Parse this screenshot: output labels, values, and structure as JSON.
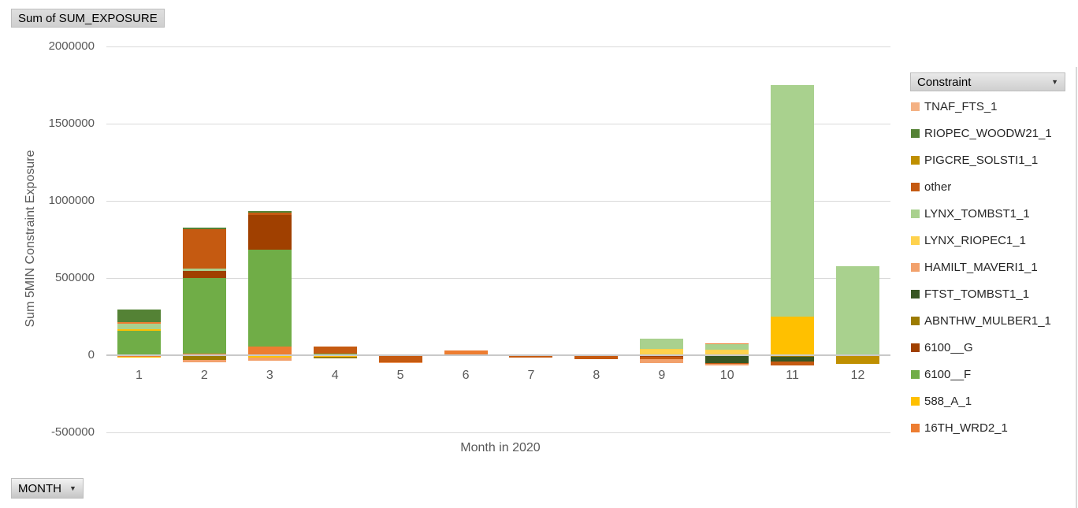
{
  "field_buttons": {
    "value_button": "Sum of SUM_EXPOSURE",
    "legend_button": "Constraint",
    "axis_button": "MONTH",
    "dropdown_arrow": "▼"
  },
  "colors": {
    "gridline": "#D9D9D9",
    "zero_axis_line": "#C9C9C9",
    "tick_text": "#595959",
    "axis_title_text": "#595959",
    "legend_text": "#262626"
  },
  "chart_data": {
    "type": "bar",
    "stacked": true,
    "title": "Sum of SUM_EXPOSURE",
    "xlabel": "Month in 2020",
    "ylabel": "Sum 5MIN Constraint Exposure",
    "ylim": [
      -500000,
      2000000
    ],
    "yticks": [
      2000000,
      1500000,
      1000000,
      500000,
      0,
      -500000
    ],
    "grid": true,
    "legend_position": "right",
    "legend_title": "Constraint",
    "categories": [
      "1",
      "2",
      "3",
      "4",
      "5",
      "6",
      "7",
      "8",
      "9",
      "10",
      "11",
      "12"
    ],
    "series_colors": {
      "TNAF_FTS_1": "#F4B183",
      "RIOPEC_WOODW21_1": "#548235",
      "PIGCRE_SOLSTI1_1": "#BF8F00",
      "other": "#C55A11",
      "LYNX_TOMBST1_1": "#A9D18E",
      "LYNX_RIOPEC1_1": "#FFD24D",
      "HAMILT_MAVERI1_1": "#F2A16C",
      "FTST_TOMBST1_1": "#375623",
      "ABNTHW_MULBER1_1": "#9C7B00",
      "6100__G": "#A04000",
      "6100__F": "#70AD47",
      "588_A_1": "#FFC000",
      "16TH_WRD2_1": "#ED7D31"
    },
    "legend_order": [
      "TNAF_FTS_1",
      "RIOPEC_WOODW21_1",
      "PIGCRE_SOLSTI1_1",
      "other",
      "LYNX_TOMBST1_1",
      "LYNX_RIOPEC1_1",
      "HAMILT_MAVERI1_1",
      "FTST_TOMBST1_1",
      "ABNTHW_MULBER1_1",
      "6100__G",
      "6100__F",
      "588_A_1",
      "16TH_WRD2_1"
    ],
    "bars": [
      {
        "category": "1",
        "positive": [
          {
            "series": "6100__F",
            "value": 158000
          },
          {
            "series": "588_A_1",
            "value": 9000
          },
          {
            "series": "LYNX_TOMBST1_1",
            "value": 36000
          },
          {
            "series": "16TH_WRD2_1",
            "value": 9000
          },
          {
            "series": "RIOPEC_WOODW21_1",
            "value": 82000
          }
        ],
        "negative": [
          {
            "series": "16TH_WRD2_1",
            "value": -8000
          },
          {
            "series": "588_A_1",
            "value": -4000
          }
        ]
      },
      {
        "category": "2",
        "positive": [
          {
            "series": "16TH_WRD2_1",
            "value": 10000
          },
          {
            "series": "6100__F",
            "value": 488000
          },
          {
            "series": "6100__G",
            "value": 50000
          },
          {
            "series": "LYNX_TOMBST1_1",
            "value": 12000
          },
          {
            "series": "other",
            "value": 255000
          },
          {
            "series": "RIOPEC_WOODW21_1",
            "value": 11000
          }
        ],
        "negative": [
          {
            "series": "ABNTHW_MULBER1_1",
            "value": -30000
          },
          {
            "series": "HAMILT_MAVERI1_1",
            "value": -17000
          }
        ]
      },
      {
        "category": "3",
        "positive": [
          {
            "series": "16TH_WRD2_1",
            "value": 56000
          },
          {
            "series": "6100__F",
            "value": 629000
          },
          {
            "series": "6100__G",
            "value": 221000
          },
          {
            "series": "other",
            "value": 18000
          },
          {
            "series": "RIOPEC_WOODW21_1",
            "value": 10000
          }
        ],
        "negative": [
          {
            "series": "588_A_1",
            "value": -17000
          },
          {
            "series": "HAMILT_MAVERI1_1",
            "value": -21000
          }
        ]
      },
      {
        "category": "4",
        "positive": [
          {
            "series": "6100__F",
            "value": 10000
          },
          {
            "series": "other",
            "value": 46000
          }
        ],
        "negative": [
          {
            "series": "588_A_1",
            "value": -10000
          },
          {
            "series": "ABNTHW_MULBER1_1",
            "value": -9000
          }
        ]
      },
      {
        "category": "5",
        "positive": [],
        "negative": [
          {
            "series": "other",
            "value": -45000
          },
          {
            "series": "HAMILT_MAVERI1_1",
            "value": -7000
          }
        ]
      },
      {
        "category": "6",
        "positive": [
          {
            "series": "16TH_WRD2_1",
            "value": 31000
          }
        ],
        "negative": [
          {
            "series": "FTST_TOMBST1_1",
            "value": -4000
          }
        ]
      },
      {
        "category": "7",
        "positive": [],
        "negative": [
          {
            "series": "other",
            "value": -13000
          }
        ]
      },
      {
        "category": "8",
        "positive": [],
        "negative": [
          {
            "series": "other",
            "value": -27000
          }
        ]
      },
      {
        "category": "9",
        "positive": [
          {
            "series": "LYNX_RIOPEC1_1",
            "value": 41000
          },
          {
            "series": "LYNX_TOMBST1_1",
            "value": 66000
          }
        ],
        "negative": [
          {
            "series": "6100__G",
            "value": -10000
          },
          {
            "series": "other",
            "value": -15000
          },
          {
            "series": "HAMILT_MAVERI1_1",
            "value": -28000
          }
        ]
      },
      {
        "category": "10",
        "positive": [
          {
            "series": "LYNX_RIOPEC1_1",
            "value": 36000
          },
          {
            "series": "LYNX_TOMBST1_1",
            "value": 35000
          },
          {
            "series": "16TH_WRD2_1",
            "value": 6000
          }
        ],
        "negative": [
          {
            "series": "FTST_TOMBST1_1",
            "value": -50000
          },
          {
            "series": "other",
            "value": -8000
          },
          {
            "series": "HAMILT_MAVERI1_1",
            "value": -10000
          }
        ]
      },
      {
        "category": "11",
        "positive": [
          {
            "series": "588_A_1",
            "value": 250000
          },
          {
            "series": "LYNX_TOMBST1_1",
            "value": 1498000
          }
        ],
        "negative": [
          {
            "series": "ABNTHW_MULBER1_1",
            "value": -12000
          },
          {
            "series": "FTST_TOMBST1_1",
            "value": -30000
          },
          {
            "series": "other",
            "value": -25000
          }
        ]
      },
      {
        "category": "12",
        "positive": [
          {
            "series": "LYNX_TOMBST1_1",
            "value": 577000
          }
        ],
        "negative": [
          {
            "series": "ABNTHW_MULBER1_1",
            "value": -4000
          },
          {
            "series": "PIGCRE_SOLSTI1_1",
            "value": -53000
          }
        ]
      }
    ]
  }
}
